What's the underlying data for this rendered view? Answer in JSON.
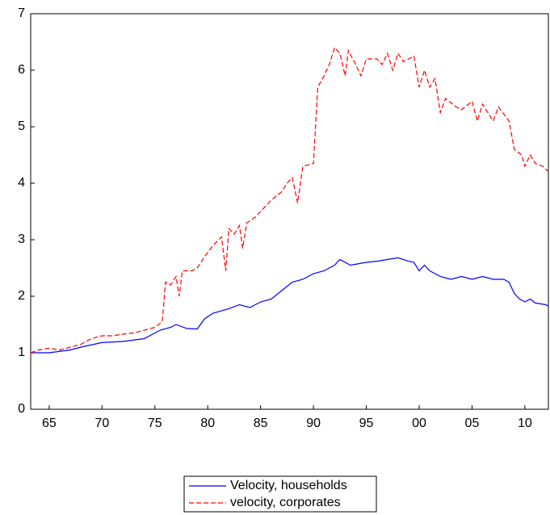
{
  "chart_data": {
    "type": "line",
    "xlim": [
      1963.25,
      2012.3
    ],
    "ylim": [
      0,
      7
    ],
    "yticks": [
      0,
      1,
      2,
      3,
      4,
      5,
      6,
      7
    ],
    "xticks": [
      {
        "value": 1965,
        "label": "65"
      },
      {
        "value": 1970,
        "label": "70"
      },
      {
        "value": 1975,
        "label": "75"
      },
      {
        "value": 1980,
        "label": "80"
      },
      {
        "value": 1985,
        "label": "85"
      },
      {
        "value": 1990,
        "label": "90"
      },
      {
        "value": 1995,
        "label": "95"
      },
      {
        "value": 2000,
        "label": "00"
      },
      {
        "value": 2005,
        "label": "05"
      },
      {
        "value": 2010,
        "label": "10"
      }
    ],
    "legend": "bottom",
    "series": [
      {
        "name": "Velocity, households",
        "color": "#0000ff",
        "dash": false,
        "x": [
          1963.25,
          1965,
          1967,
          1968,
          1970,
          1972,
          1974,
          1975.5,
          1976.5,
          1977,
          1978,
          1979,
          1979.7,
          1980.5,
          1982,
          1983,
          1984,
          1985,
          1986,
          1987,
          1988,
          1989,
          1990,
          1991,
          1992,
          1992.5,
          1993.5,
          1995,
          1996,
          1997,
          1998,
          1999,
          1999.5,
          2000,
          2000.5,
          2001,
          2002,
          2003,
          2004,
          2005,
          2006,
          2007,
          2008,
          2008.5,
          2009,
          2009.5,
          2010,
          2010.5,
          2011,
          2012,
          2012.25
        ],
        "values": [
          1.0,
          1.0,
          1.05,
          1.1,
          1.18,
          1.2,
          1.25,
          1.4,
          1.45,
          1.5,
          1.43,
          1.42,
          1.6,
          1.7,
          1.78,
          1.85,
          1.8,
          1.9,
          1.95,
          2.1,
          2.25,
          2.3,
          2.4,
          2.45,
          2.55,
          2.65,
          2.55,
          2.6,
          2.62,
          2.65,
          2.68,
          2.62,
          2.6,
          2.45,
          2.55,
          2.45,
          2.35,
          2.3,
          2.35,
          2.3,
          2.35,
          2.3,
          2.3,
          2.25,
          2.05,
          1.95,
          1.9,
          1.95,
          1.88,
          1.85,
          1.82
        ]
      },
      {
        "name": "velocity, corporates",
        "color": "#ff0000",
        "dash": true,
        "x": [
          1963.25,
          1964,
          1965,
          1966,
          1967,
          1968,
          1969,
          1970,
          1971,
          1972,
          1973,
          1974,
          1975,
          1975.7,
          1976,
          1976.5,
          1977,
          1977.3,
          1977.6,
          1978.5,
          1979,
          1979.7,
          1980.5,
          1981.3,
          1981.7,
          1982,
          1982.5,
          1983,
          1983.3,
          1983.7,
          1984.5,
          1985,
          1986,
          1987,
          1987.5,
          1988,
          1988.5,
          1989,
          1990,
          1990.4,
          1991,
          1991.5,
          1992,
          1992.5,
          1993,
          1993.3,
          1994,
          1994.5,
          1995,
          1996,
          1996.5,
          1997,
          1997.5,
          1998,
          1998.5,
          1999.5,
          2000,
          2000.5,
          2001,
          2001.5,
          2002,
          2002.5,
          2003.5,
          2004,
          2005,
          2005.5,
          2006,
          2007,
          2007.5,
          2008.5,
          2009,
          2009.7,
          2010,
          2010.5,
          2011,
          2011.7,
          2012.25
        ],
        "values": [
          1.0,
          1.05,
          1.08,
          1.05,
          1.1,
          1.15,
          1.25,
          1.3,
          1.3,
          1.33,
          1.35,
          1.4,
          1.45,
          1.55,
          2.25,
          2.2,
          2.35,
          2.0,
          2.45,
          2.45,
          2.5,
          2.7,
          2.9,
          3.05,
          2.45,
          3.2,
          3.1,
          3.25,
          2.85,
          3.3,
          3.4,
          3.5,
          3.7,
          3.85,
          4.0,
          4.1,
          3.65,
          4.3,
          4.35,
          5.7,
          5.9,
          6.1,
          6.4,
          6.3,
          5.9,
          6.35,
          6.1,
          5.9,
          6.2,
          6.2,
          6.1,
          6.3,
          6.0,
          6.3,
          6.15,
          6.25,
          5.7,
          6.0,
          5.7,
          5.85,
          5.25,
          5.5,
          5.35,
          5.3,
          5.45,
          5.1,
          5.4,
          5.1,
          5.35,
          5.1,
          4.6,
          4.5,
          4.3,
          4.5,
          4.35,
          4.3,
          4.2
        ]
      }
    ]
  }
}
